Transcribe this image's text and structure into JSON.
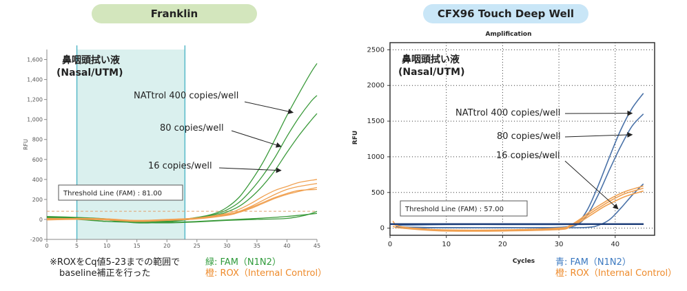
{
  "colors": {
    "fam_left": "#3b9a3b",
    "rox": "#f0a050",
    "fam_right": "#4a72a8",
    "baseline_band": "#daf0ee",
    "band_edge": "#56b8c8",
    "pill_left": "#d3e6bd",
    "pill_right": "#c9e6f7",
    "legend_green": "#2e9a3a",
    "legend_orange": "#ee8a2a",
    "legend_blue": "#3a78c0"
  },
  "chart_data": [
    {
      "type": "line",
      "title": "Franklin",
      "ylabel": "RFU",
      "xlabel": "",
      "xlim": [
        0,
        45
      ],
      "ylim": [
        -200,
        1700
      ],
      "xticks": [
        0,
        5,
        10,
        15,
        20,
        25,
        30,
        35,
        40,
        45
      ],
      "yticks": [
        -200,
        0,
        200,
        400,
        600,
        800,
        1000,
        1200,
        1400,
        1600
      ],
      "ytick_labels": [
        "-200",
        "0",
        "200",
        "400",
        "600",
        "800",
        "1,000",
        "1,200",
        "1,400",
        "1,600"
      ],
      "sample_label": "鼻咽頭拭い液\n(Nasal/UTM)",
      "baseline_range": [
        5,
        23
      ],
      "threshold": 81.0,
      "threshold_label": "Threshold Line (FAM) : 81.00",
      "annotations": [
        {
          "text": "NATtrol 400 copies/well",
          "target": [
            41,
            1070
          ]
        },
        {
          "text": "80 copies/well",
          "target": [
            39,
            730
          ]
        },
        {
          "text": "16 copies/well",
          "target": [
            39,
            490
          ]
        }
      ],
      "series": [
        {
          "group": "FAM",
          "x": [
            0,
            5,
            10,
            15,
            20,
            25,
            28,
            30,
            32,
            34,
            36,
            38,
            40,
            42,
            44,
            45
          ],
          "y": [
            30,
            20,
            5,
            -25,
            -15,
            20,
            60,
            120,
            220,
            380,
            570,
            800,
            1040,
            1260,
            1470,
            1560
          ]
        },
        {
          "group": "FAM",
          "x": [
            0,
            5,
            10,
            15,
            20,
            25,
            28,
            30,
            32,
            34,
            36,
            38,
            40,
            42,
            44,
            45
          ],
          "y": [
            25,
            15,
            0,
            -30,
            -20,
            15,
            50,
            95,
            170,
            290,
            440,
            620,
            830,
            1020,
            1180,
            1240
          ]
        },
        {
          "group": "FAM",
          "x": [
            0,
            5,
            10,
            15,
            20,
            25,
            28,
            30,
            32,
            34,
            36,
            38,
            40,
            42,
            44,
            45
          ],
          "y": [
            20,
            10,
            -5,
            -35,
            -25,
            10,
            40,
            75,
            130,
            220,
            340,
            490,
            670,
            840,
            990,
            1060
          ]
        },
        {
          "group": "FAM",
          "x": [
            0,
            5,
            10,
            15,
            20,
            25,
            30,
            35,
            40,
            43,
            45
          ],
          "y": [
            15,
            5,
            -20,
            -30,
            -35,
            -25,
            -10,
            0,
            10,
            40,
            80
          ]
        },
        {
          "group": "FAM",
          "x": [
            0,
            5,
            10,
            15,
            20,
            25,
            30,
            35,
            40,
            45
          ],
          "y": [
            10,
            0,
            -20,
            -25,
            -30,
            -20,
            -5,
            10,
            30,
            60
          ]
        },
        {
          "group": "ROX",
          "x": [
            0,
            5,
            10,
            15,
            20,
            25,
            30,
            32,
            34,
            36,
            38,
            40,
            42,
            45
          ],
          "y": [
            0,
            10,
            5,
            -10,
            0,
            15,
            60,
            100,
            160,
            230,
            290,
            330,
            370,
            400
          ]
        },
        {
          "group": "ROX",
          "x": [
            0,
            5,
            10,
            15,
            20,
            25,
            30,
            32,
            34,
            36,
            38,
            40,
            42,
            45
          ],
          "y": [
            5,
            5,
            0,
            -15,
            -5,
            10,
            50,
            80,
            130,
            190,
            250,
            300,
            330,
            360
          ]
        },
        {
          "group": "ROX",
          "x": [
            0,
            5,
            10,
            15,
            20,
            25,
            30,
            32,
            34,
            36,
            38,
            40,
            42,
            45
          ],
          "y": [
            -5,
            0,
            -5,
            -20,
            -10,
            5,
            40,
            70,
            110,
            160,
            210,
            250,
            280,
            320
          ]
        },
        {
          "group": "ROX",
          "x": [
            0,
            5,
            10,
            15,
            20,
            25,
            30,
            32,
            34,
            36,
            38,
            40,
            42,
            45
          ],
          "y": [
            10,
            8,
            2,
            -10,
            -2,
            12,
            45,
            75,
            120,
            170,
            220,
            260,
            290,
            300
          ]
        }
      ]
    },
    {
      "type": "line",
      "title": "CFX96 Touch Deep Well",
      "subtitle": "Amplification",
      "ylabel": "RFU",
      "xlabel": "Cycles",
      "xlim": [
        0,
        47
      ],
      "ylim": [
        -100,
        2600
      ],
      "xticks": [
        0,
        10,
        20,
        30,
        40
      ],
      "yticks": [
        0,
        500,
        1000,
        1500,
        2000,
        2500
      ],
      "grid": "dotted",
      "sample_label": "鼻咽頭拭い液\n(Nasal/UTM)",
      "threshold": 57.0,
      "threshold_label": "Threshold Line (FAM) : 57.00",
      "annotations": [
        {
          "text": "NATtrol 400 copies/well",
          "target": [
            43,
            1610
          ]
        },
        {
          "text": "80 copies/well",
          "target": [
            43,
            1310
          ]
        },
        {
          "text": "16 copies/well",
          "target": [
            40.5,
            270
          ]
        }
      ],
      "series": [
        {
          "group": "FAM",
          "x": [
            1,
            5,
            10,
            20,
            30,
            33,
            35,
            37,
            39,
            41,
            43,
            45
          ],
          "y": [
            20,
            10,
            5,
            5,
            10,
            60,
            250,
            600,
            1000,
            1380,
            1680,
            1890
          ]
        },
        {
          "group": "FAM",
          "x": [
            1,
            5,
            10,
            20,
            30,
            33,
            35,
            37,
            39,
            41,
            43,
            45
          ],
          "y": [
            15,
            10,
            5,
            5,
            10,
            40,
            180,
            470,
            820,
            1150,
            1430,
            1600
          ]
        },
        {
          "group": "FAM",
          "x": [
            1,
            5,
            10,
            20,
            30,
            35,
            37,
            39,
            41,
            43,
            45
          ],
          "y": [
            10,
            5,
            5,
            5,
            5,
            10,
            40,
            120,
            280,
            460,
            620
          ]
        },
        {
          "group": "FAM",
          "x": [
            1,
            10,
            20,
            30,
            40,
            45
          ],
          "y": [
            40,
            50,
            50,
            50,
            55,
            55
          ]
        },
        {
          "group": "ROX",
          "x": [
            0.5,
            1,
            2,
            5,
            10,
            20,
            30,
            32,
            34,
            36,
            38,
            40,
            42,
            45
          ],
          "y": [
            60,
            40,
            20,
            -10,
            -30,
            -30,
            -10,
            30,
            120,
            230,
            330,
            420,
            490,
            560
          ]
        },
        {
          "group": "ROX",
          "x": [
            0.5,
            1,
            2,
            5,
            10,
            20,
            30,
            32,
            34,
            36,
            38,
            40,
            42,
            45
          ],
          "y": [
            30,
            10,
            0,
            -20,
            -40,
            -40,
            -20,
            20,
            100,
            200,
            300,
            380,
            450,
            520
          ]
        },
        {
          "group": "ROX",
          "x": [
            0.5,
            1,
            2,
            5,
            10,
            20,
            30,
            32,
            34,
            36,
            38,
            40,
            42,
            45
          ],
          "y": [
            100,
            50,
            20,
            -5,
            -25,
            -25,
            0,
            40,
            140,
            260,
            360,
            450,
            520,
            590
          ]
        }
      ]
    }
  ],
  "left_note": [
    "※ROXをCq値5-23までの範囲で",
    "baseline補正を行った"
  ],
  "left_legend": {
    "fam": "緑: FAM（N1N2）",
    "rox": "橙: ROX（Internal Control）"
  },
  "right_legend": {
    "fam": "青: FAM（N1N2）",
    "rox": "橙: ROX（Internal Control）"
  }
}
